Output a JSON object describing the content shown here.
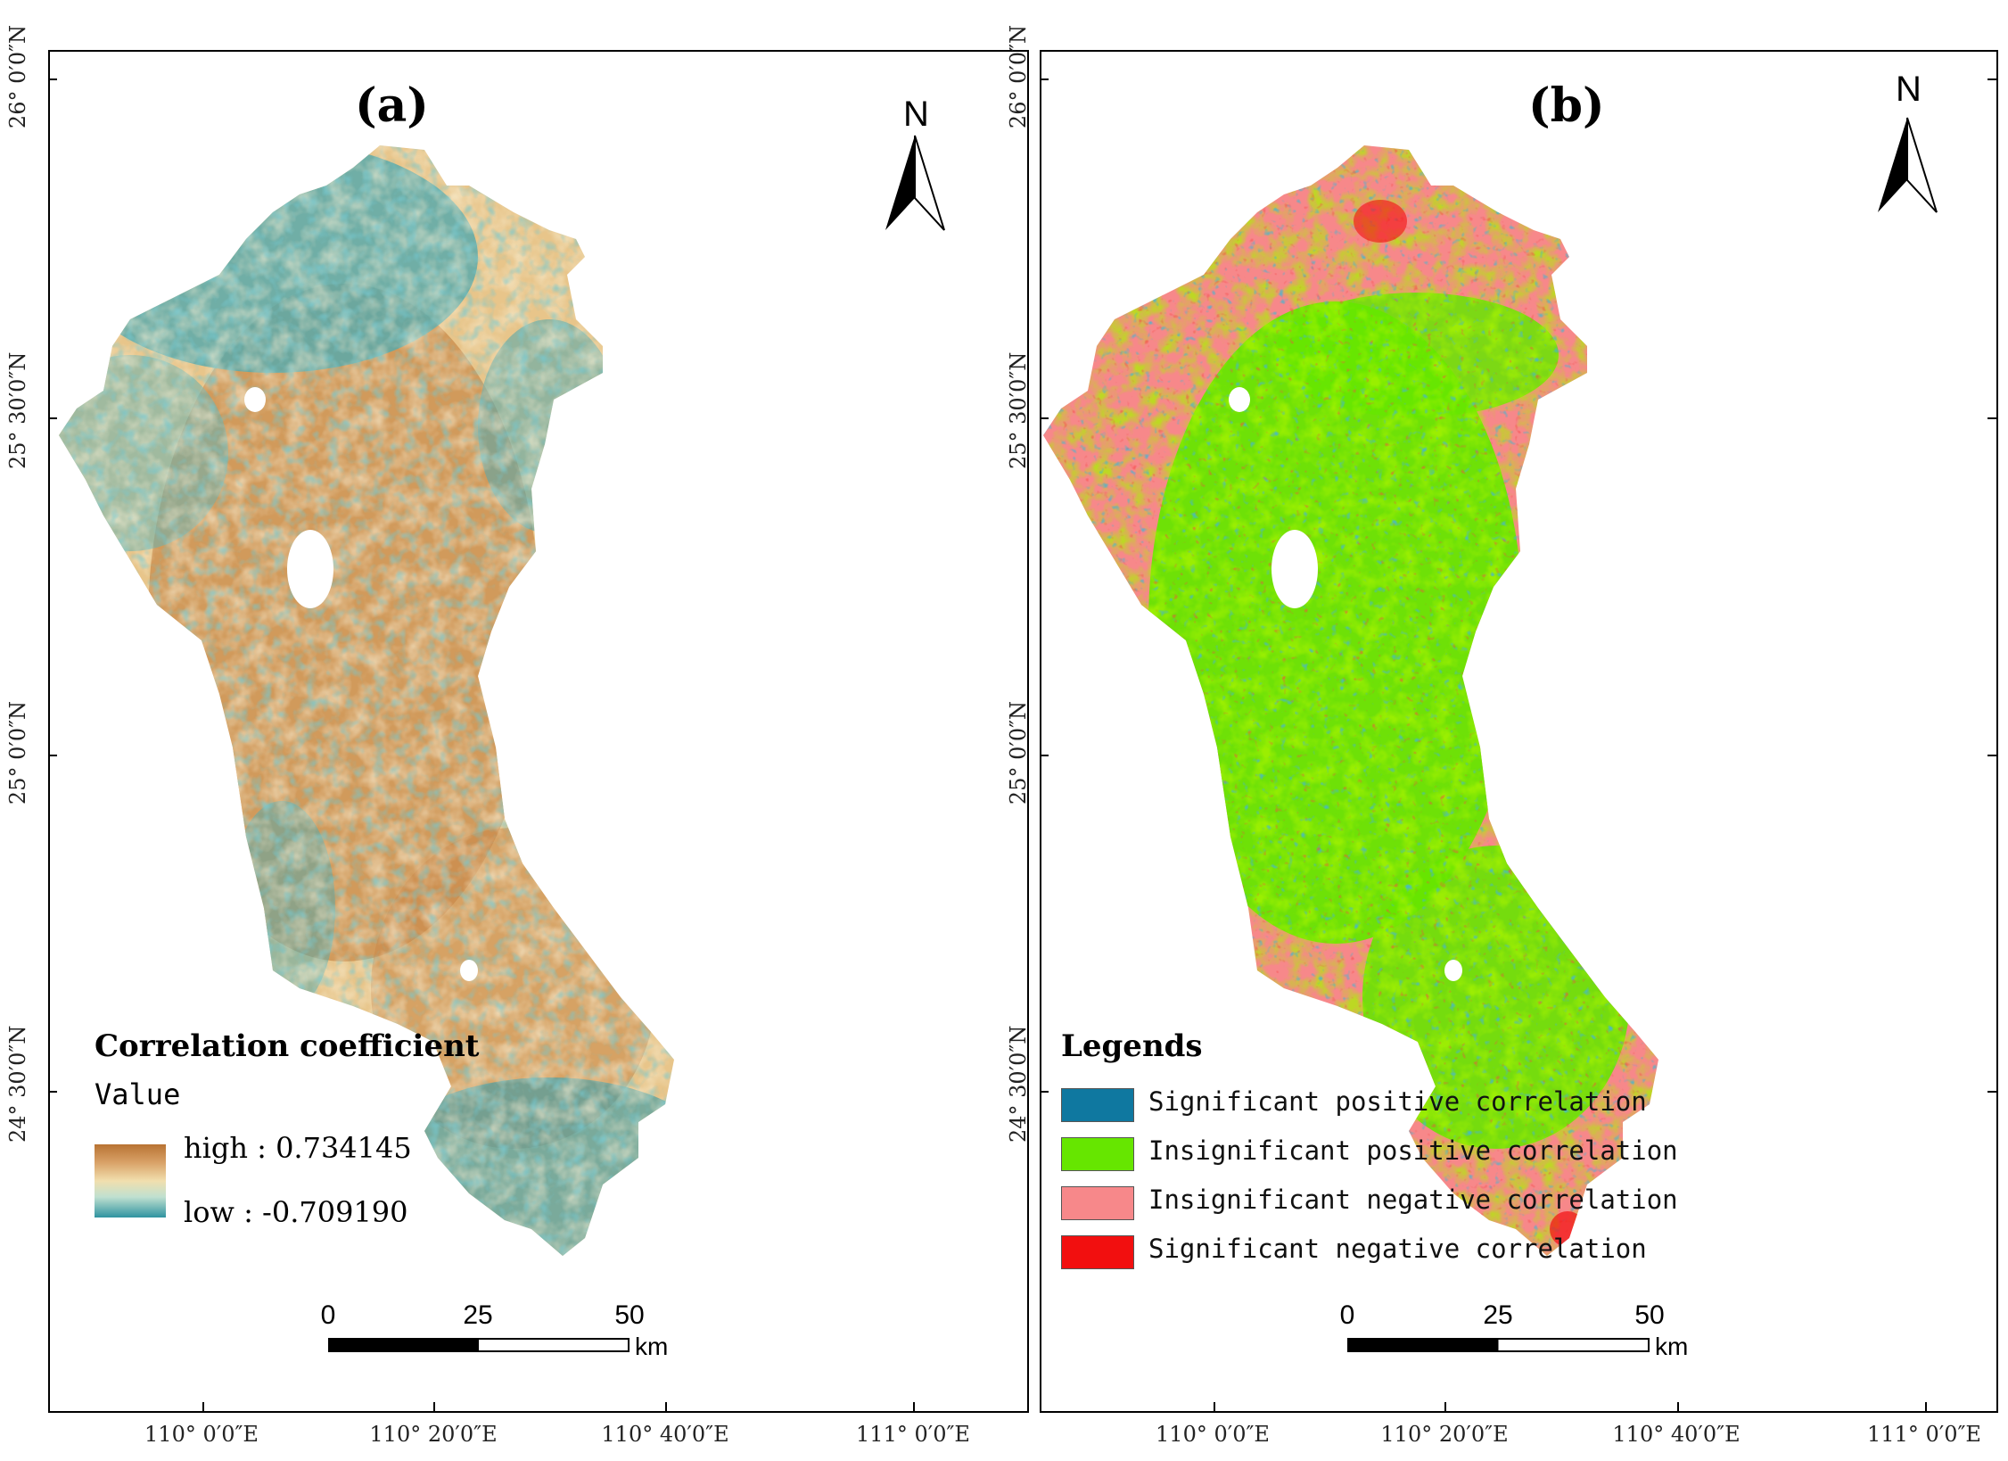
{
  "lat_ticks": [
    "26° 0′0″N",
    "25° 30′0″N",
    "25° 0′0″N",
    "24° 30′0″N"
  ],
  "lon_ticks": [
    "110° 0′0″E",
    "110° 20′0″E",
    "110° 40′0″E",
    "111° 0′0″E"
  ],
  "panel_a": {
    "title": "(a)",
    "legend_title": "Correlation coefficient",
    "legend_sub": "Value",
    "high_label": "high : 0.734145",
    "low_label": "low : -0.709190",
    "ramp_colors": [
      "#b87333",
      "#d9a268",
      "#f1dfae",
      "#bfe0d0",
      "#2f93a0"
    ]
  },
  "panel_b": {
    "title": "(b)",
    "legend_title": "Legends",
    "classes": [
      {
        "label": "Significant positive correlation",
        "color": "#0f78a0"
      },
      {
        "label": "Insignificant positive correlation",
        "color": "#66e600"
      },
      {
        "label": "Insignificant negative correlation",
        "color": "#f7888a"
      },
      {
        "label": "Significant negative correlation",
        "color": "#f20f0f"
      }
    ]
  },
  "north_label": "N",
  "scale_bar": {
    "labels": [
      "0",
      "25",
      "50"
    ],
    "unit": "km"
  }
}
